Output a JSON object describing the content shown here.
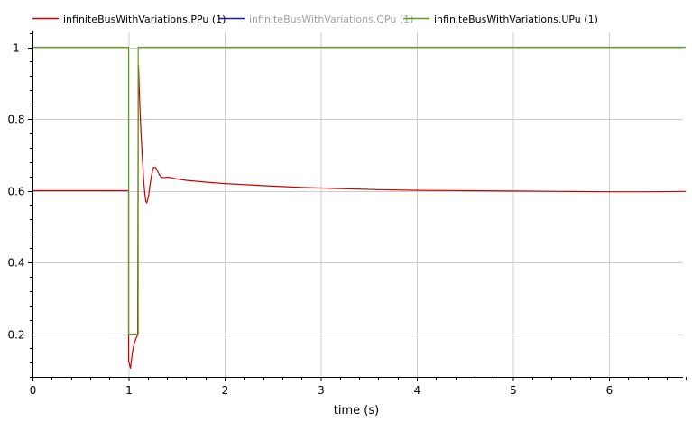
{
  "chart_data": {
    "type": "line",
    "xlabel": "time (s)",
    "ylabel": "",
    "xlim": [
      0,
      6.8
    ],
    "ylim": [
      0.07,
      1.04
    ],
    "x_ticks": [
      0,
      1,
      2,
      3,
      4,
      5,
      6
    ],
    "y_ticks": [
      0.2,
      0.4,
      0.6,
      0.8,
      1
    ],
    "x_minor_step": 0.2,
    "y_minor_step": 0.04,
    "grid": true,
    "legend_position": "top",
    "series": [
      {
        "name": "infiniteBusWithVariations.PPu (1)",
        "color": "#cc0000",
        "visible": true,
        "x": [
          0,
          1,
          1,
          1.02,
          1.04,
          1.06,
          1.08,
          1.095,
          1.1,
          1.103,
          1.11,
          1.12,
          1.13,
          1.14,
          1.15,
          1.16,
          1.17,
          1.18,
          1.19,
          1.2,
          1.21,
          1.22,
          1.24,
          1.26,
          1.28,
          1.3,
          1.32,
          1.34,
          1.37,
          1.4,
          1.45,
          1.5,
          1.6,
          1.8,
          2.0,
          2.4,
          2.8,
          3.2,
          3.6,
          4.0,
          4.5,
          5.0,
          5.5,
          6.0,
          6.4,
          6.8
        ],
        "y": [
          0.6,
          0.6,
          0.125,
          0.105,
          0.15,
          0.175,
          0.19,
          0.197,
          0.86,
          0.95,
          0.89,
          0.82,
          0.76,
          0.71,
          0.66,
          0.62,
          0.59,
          0.57,
          0.566,
          0.575,
          0.59,
          0.61,
          0.645,
          0.665,
          0.665,
          0.655,
          0.645,
          0.638,
          0.636,
          0.638,
          0.636,
          0.633,
          0.629,
          0.624,
          0.62,
          0.614,
          0.609,
          0.606,
          0.603,
          0.601,
          0.6,
          0.599,
          0.598,
          0.597,
          0.597,
          0.598
        ]
      },
      {
        "name": "infiniteBusWithVariations.QPu (1)",
        "color": "#1a1aa6",
        "visible": false,
        "x": [],
        "y": []
      },
      {
        "name": "infiniteBusWithVariations.UPu (1)",
        "color": "#5ea01e",
        "visible": true,
        "x": [
          0,
          1,
          1,
          1.1,
          1.1,
          6.8
        ],
        "y": [
          1,
          1,
          0.2,
          0.2,
          1,
          1
        ]
      }
    ]
  },
  "colors": {
    "axis": "#000000",
    "grid": "#cccccc",
    "hidden_legend_text": "#a0a0a0",
    "visible_legend_text": "#000000"
  }
}
